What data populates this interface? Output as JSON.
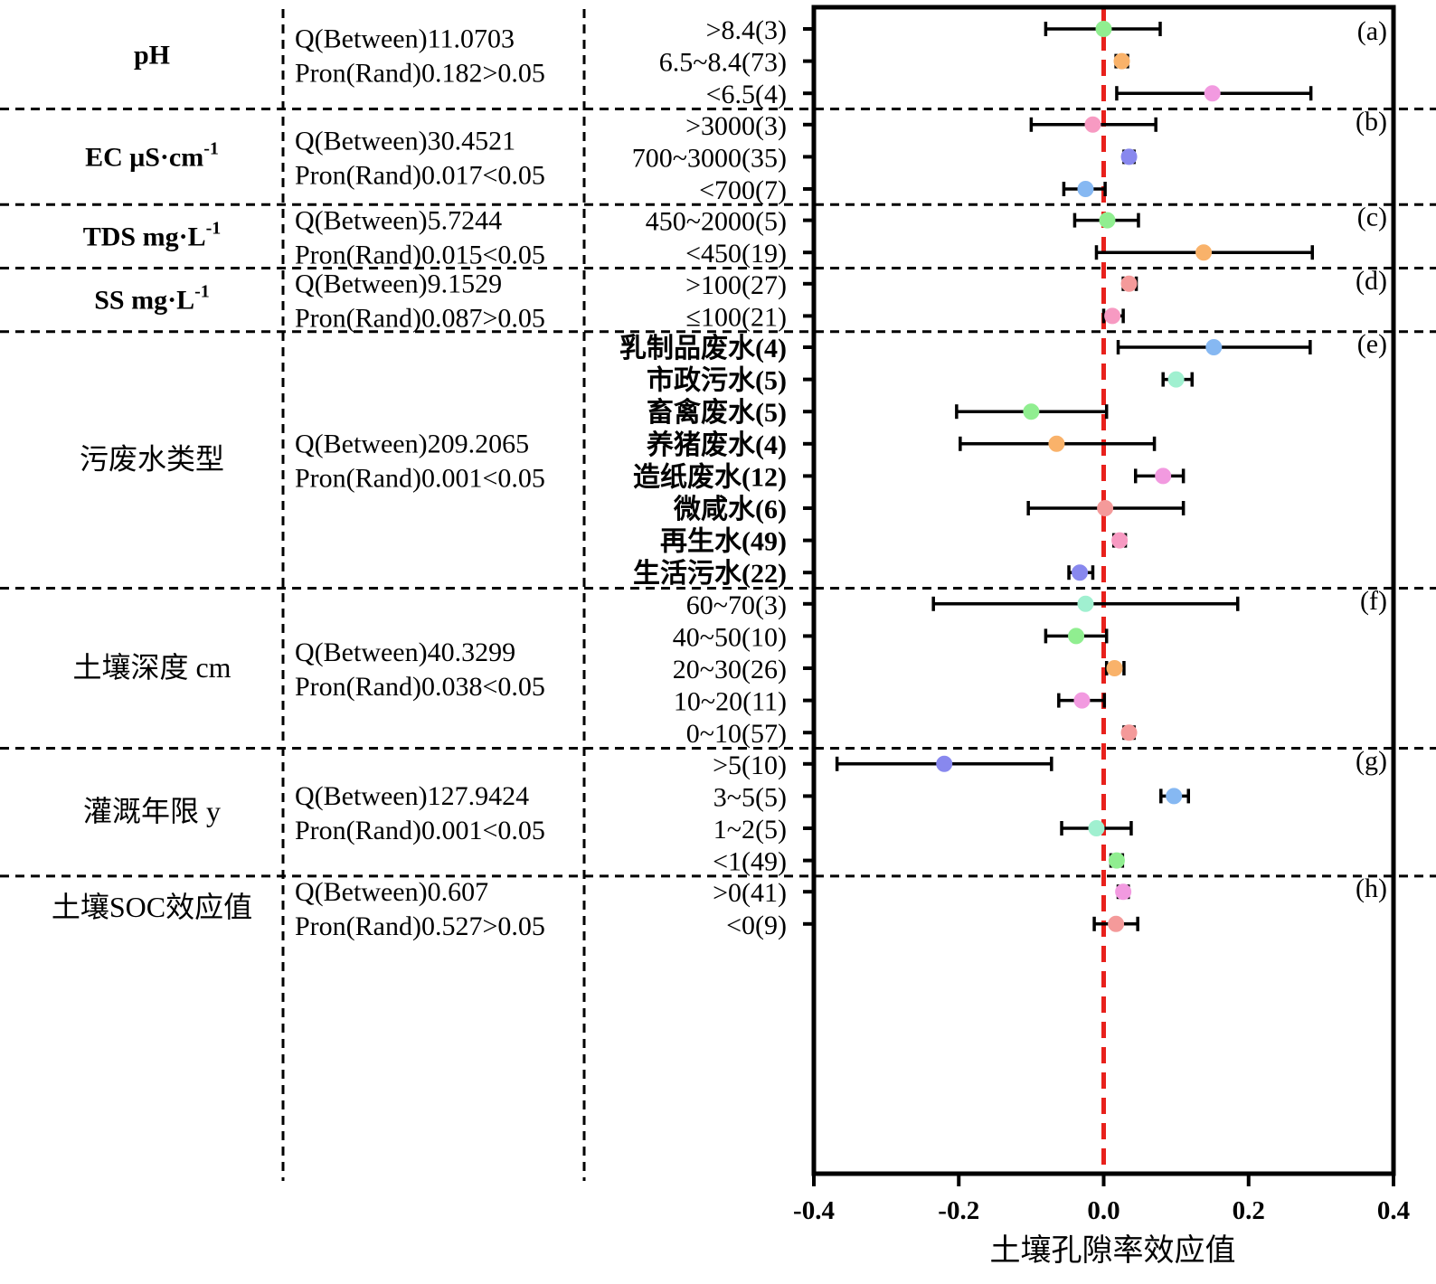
{
  "chart_data": {
    "type": "scatter",
    "subtype": "forest-plot",
    "xlabel": "土壤孔隙率效应值",
    "xlim": [
      -0.4,
      0.4
    ],
    "xticks": [
      -0.4,
      -0.2,
      0.0,
      0.2,
      0.4
    ],
    "xtick_labels": [
      "-0.4",
      "-0.2",
      "0.0",
      "0.2",
      "0.4"
    ],
    "reference_line": 0.0,
    "reference_color": "#e8211c",
    "groups": [
      {
        "panel": "(a)",
        "name": "pH",
        "name_sup": "",
        "bold": true,
        "q": "Q(Between)11.0703",
        "p": "Pron(Rand)0.182>0.05",
        "items": [
          {
            "label": ">8.4(3)",
            "mean": 0.0,
            "lo": -0.08,
            "hi": 0.078,
            "color": "#90ee90"
          },
          {
            "label": "6.5~8.4(73)",
            "mean": 0.025,
            "lo": 0.017,
            "hi": 0.033,
            "color": "#f9b26a"
          },
          {
            "label": "<6.5(4)",
            "mean": 0.15,
            "lo": 0.018,
            "hi": 0.286,
            "color": "#f29ae0"
          }
        ]
      },
      {
        "panel": "(b)",
        "name": "EC μS·cm",
        "name_sup": "-1",
        "bold": true,
        "q": "Q(Between)30.4521",
        "p": "Pron(Rand)0.017<0.05",
        "items": [
          {
            "label": ">3000(3)",
            "mean": -0.015,
            "lo": -0.1,
            "hi": 0.072,
            "color": "#f79ac2"
          },
          {
            "label": "700~3000(35)",
            "mean": 0.035,
            "lo": 0.028,
            "hi": 0.042,
            "color": "#8888ee"
          },
          {
            "label": "<700(7)",
            "mean": -0.025,
            "lo": -0.055,
            "hi": 0.002,
            "color": "#86b8f2"
          }
        ]
      },
      {
        "panel": "(c)",
        "name": "TDS mg·L",
        "name_sup": "-1",
        "bold": true,
        "q": "Q(Between)5.7244",
        "p": "Pron(Rand)0.015<0.05",
        "items": [
          {
            "label": "450~2000(5)",
            "mean": 0.005,
            "lo": -0.04,
            "hi": 0.048,
            "color": "#90ee90"
          },
          {
            "label": "<450(19)",
            "mean": 0.138,
            "lo": -0.01,
            "hi": 0.288,
            "color": "#f9b26a"
          }
        ]
      },
      {
        "panel": "(d)",
        "name": "SS mg·L",
        "name_sup": "-1",
        "bold": true,
        "q": "Q(Between)9.1529",
        "p": "Pron(Rand)0.087>0.05",
        "items": [
          {
            "label": ">100(27)",
            "mean": 0.035,
            "lo": 0.027,
            "hi": 0.045,
            "color": "#f49a9a"
          },
          {
            "label": "≤100(21)",
            "mean": 0.012,
            "lo": 0.0,
            "hi": 0.027,
            "color": "#f79ac2"
          }
        ]
      },
      {
        "panel": "(e)",
        "name": "污废水类型",
        "name_sup": "",
        "bold": false,
        "q": "Q(Between)209.2065",
        "p": "Pron(Rand)0.001<0.05",
        "items": [
          {
            "label": "乳制品废水(4)",
            "mean": 0.152,
            "lo": 0.02,
            "hi": 0.285,
            "color": "#86b8f2"
          },
          {
            "label": "市政污水(5)",
            "mean": 0.1,
            "lo": 0.082,
            "hi": 0.122,
            "color": "#a0f0d0"
          },
          {
            "label": "畜禽废水(5)",
            "mean": -0.1,
            "lo": -0.203,
            "hi": 0.004,
            "color": "#90ee90"
          },
          {
            "label": "养猪废水(4)",
            "mean": -0.065,
            "lo": -0.198,
            "hi": 0.07,
            "color": "#f9b26a"
          },
          {
            "label": "造纸废水(12)",
            "mean": 0.082,
            "lo": 0.044,
            "hi": 0.11,
            "color": "#f29ae0"
          },
          {
            "label": "微咸水(6)",
            "mean": 0.002,
            "lo": -0.104,
            "hi": 0.11,
            "color": "#f49a9a"
          },
          {
            "label": "再生水(49)",
            "mean": 0.022,
            "lo": 0.014,
            "hi": 0.03,
            "color": "#f79ac2"
          },
          {
            "label": "生活污水(22)",
            "mean": -0.033,
            "lo": -0.048,
            "hi": -0.015,
            "color": "#8888ee"
          }
        ]
      },
      {
        "panel": "(f)",
        "name": "土壤深度 cm",
        "name_sup": "",
        "bold": false,
        "q": "Q(Between)40.3299",
        "p": "Pron(Rand)0.038<0.05",
        "items": [
          {
            "label": "60~70(3)",
            "mean": -0.025,
            "lo": -0.235,
            "hi": 0.185,
            "color": "#a0f0d0"
          },
          {
            "label": "40~50(10)",
            "mean": -0.038,
            "lo": -0.08,
            "hi": 0.004,
            "color": "#90ee90"
          },
          {
            "label": "20~30(26)",
            "mean": 0.015,
            "lo": 0.004,
            "hi": 0.028,
            "color": "#f9b26a"
          },
          {
            "label": "10~20(11)",
            "mean": -0.03,
            "lo": -0.062,
            "hi": 0.001,
            "color": "#f29ae0"
          },
          {
            "label": "0~10(57)",
            "mean": 0.035,
            "lo": 0.028,
            "hi": 0.042,
            "color": "#f49a9a"
          }
        ]
      },
      {
        "panel": "(g)",
        "name": "灌溉年限 y",
        "name_sup": "",
        "bold": false,
        "q": "Q(Between)127.9424",
        "p": "Pron(Rand)0.001<0.05",
        "items": [
          {
            "label": ">5(10)",
            "mean": -0.22,
            "lo": -0.368,
            "hi": -0.072,
            "color": "#8888ee"
          },
          {
            "label": "3~5(5)",
            "mean": 0.097,
            "lo": 0.079,
            "hi": 0.117,
            "color": "#86b8f2"
          },
          {
            "label": "1~2(5)",
            "mean": -0.01,
            "lo": -0.058,
            "hi": 0.038,
            "color": "#a0f0d0"
          },
          {
            "label": "<1(49)",
            "mean": 0.018,
            "lo": 0.01,
            "hi": 0.026,
            "color": "#90ee90"
          }
        ]
      },
      {
        "panel": "(h)",
        "name": "土壤SOC效应值",
        "name_sup": "",
        "bold": false,
        "q": "Q(Between)0.607",
        "p": "Pron(Rand)0.527>0.05",
        "items": [
          {
            "label": ">0(41)",
            "mean": 0.027,
            "lo": 0.02,
            "hi": 0.034,
            "color": "#f29ae0"
          },
          {
            "label": "<0(9)",
            "mean": 0.017,
            "lo": -0.013,
            "hi": 0.047,
            "color": "#f49a9a"
          }
        ]
      }
    ]
  }
}
